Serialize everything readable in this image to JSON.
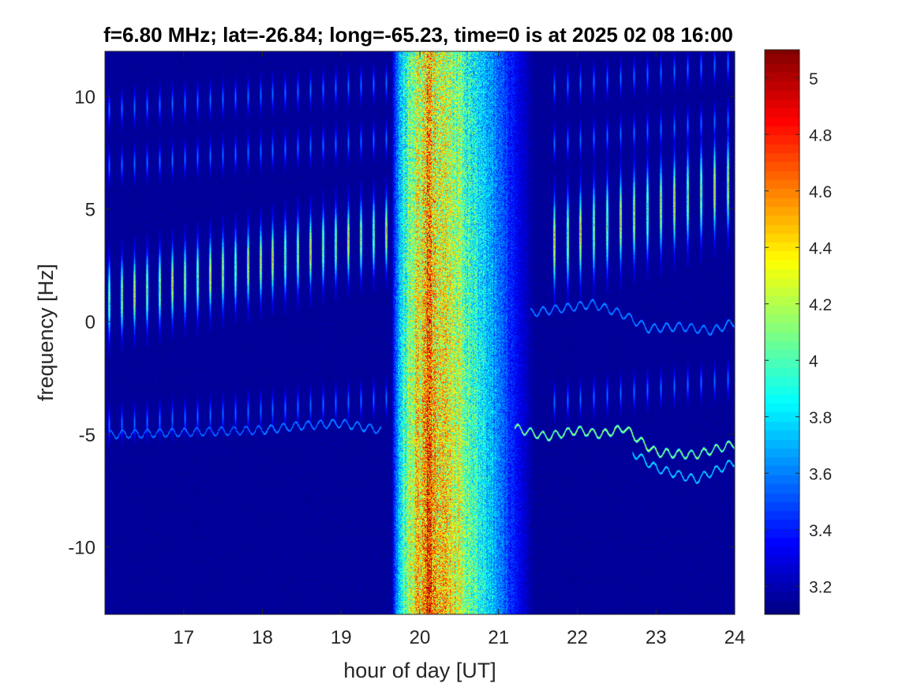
{
  "chart_data": {
    "type": "heatmap",
    "title": "f=6.80 MHz;  lat=-26.84; long=-65.23, time=0 is at 2025 02 08 16:00",
    "xlabel": "hour of day [UT]",
    "ylabel": "frequency [Hz]",
    "xlim": [
      16,
      24
    ],
    "ylim": [
      -13,
      12
    ],
    "xticks": [
      17,
      18,
      19,
      20,
      21,
      22,
      23,
      24
    ],
    "yticks": [
      -10,
      -5,
      0,
      5,
      10
    ],
    "xtick_labels": [
      "17",
      "18",
      "19",
      "20",
      "21",
      "22",
      "23",
      "24"
    ],
    "ytick_labels": [
      "-10",
      "-5",
      "0",
      "5",
      "10"
    ],
    "colorbar": {
      "colormap": "jet",
      "clim": [
        3.1,
        5.1
      ],
      "ticks": [
        3.2,
        3.4,
        3.6,
        3.8,
        4,
        4.2,
        4.4,
        4.6,
        4.8,
        5
      ],
      "tick_labels": [
        "3.2",
        "3.4",
        "3.6",
        "3.8",
        "4",
        "4.2",
        "4.4",
        "4.6",
        "4.8",
        "5"
      ]
    },
    "background_level": 3.15,
    "broadband_noise": {
      "x_start": 19.65,
      "x_end": 21.45,
      "peak_x": 20.1,
      "peak_level": 4.6
    },
    "periodic_streaks": [
      {
        "x_start": 16.05,
        "x_end": 19.6,
        "period_h": 0.16,
        "center_freq_start": 1.0,
        "center_freq_end": 4.0,
        "half_height": 1.8,
        "peak_level": 4.7
      },
      {
        "x_start": 21.7,
        "x_end": 24.0,
        "period_h": 0.17,
        "center_freq_start": 3.5,
        "center_freq_end": 6.2,
        "half_height": 2.2,
        "peak_level": 4.75
      }
    ],
    "faint_streak_rows": [
      -4,
      7.5,
      10
    ],
    "traces": [
      {
        "name_hidden": true,
        "points": [
          [
            16.05,
            -5.0
          ],
          [
            17.0,
            -4.9
          ],
          [
            18.0,
            -4.8
          ],
          [
            18.5,
            -4.6
          ],
          [
            19.0,
            -4.5
          ],
          [
            19.5,
            -4.8
          ]
        ],
        "level": 3.7
      },
      {
        "name_hidden": true,
        "points": [
          [
            21.2,
            -4.7
          ],
          [
            21.6,
            -5.1
          ],
          [
            22.0,
            -4.8
          ],
          [
            22.3,
            -5.0
          ],
          [
            22.6,
            -4.7
          ],
          [
            22.8,
            -5.3
          ],
          [
            23.0,
            -5.8
          ],
          [
            23.5,
            -5.9
          ],
          [
            24.0,
            -5.4
          ]
        ],
        "level": 4.3
      },
      {
        "name_hidden": true,
        "points": [
          [
            22.7,
            -5.8
          ],
          [
            23.0,
            -6.5
          ],
          [
            23.5,
            -7.0
          ],
          [
            24.0,
            -6.2
          ]
        ],
        "level": 3.9
      },
      {
        "name_hidden": true,
        "points": [
          [
            21.4,
            0.4
          ],
          [
            21.8,
            0.6
          ],
          [
            22.2,
            0.8
          ],
          [
            22.6,
            0.3
          ],
          [
            22.9,
            -0.3
          ],
          [
            23.3,
            -0.2
          ],
          [
            23.7,
            -0.4
          ],
          [
            24.0,
            0.0
          ]
        ],
        "level": 3.7
      }
    ]
  }
}
